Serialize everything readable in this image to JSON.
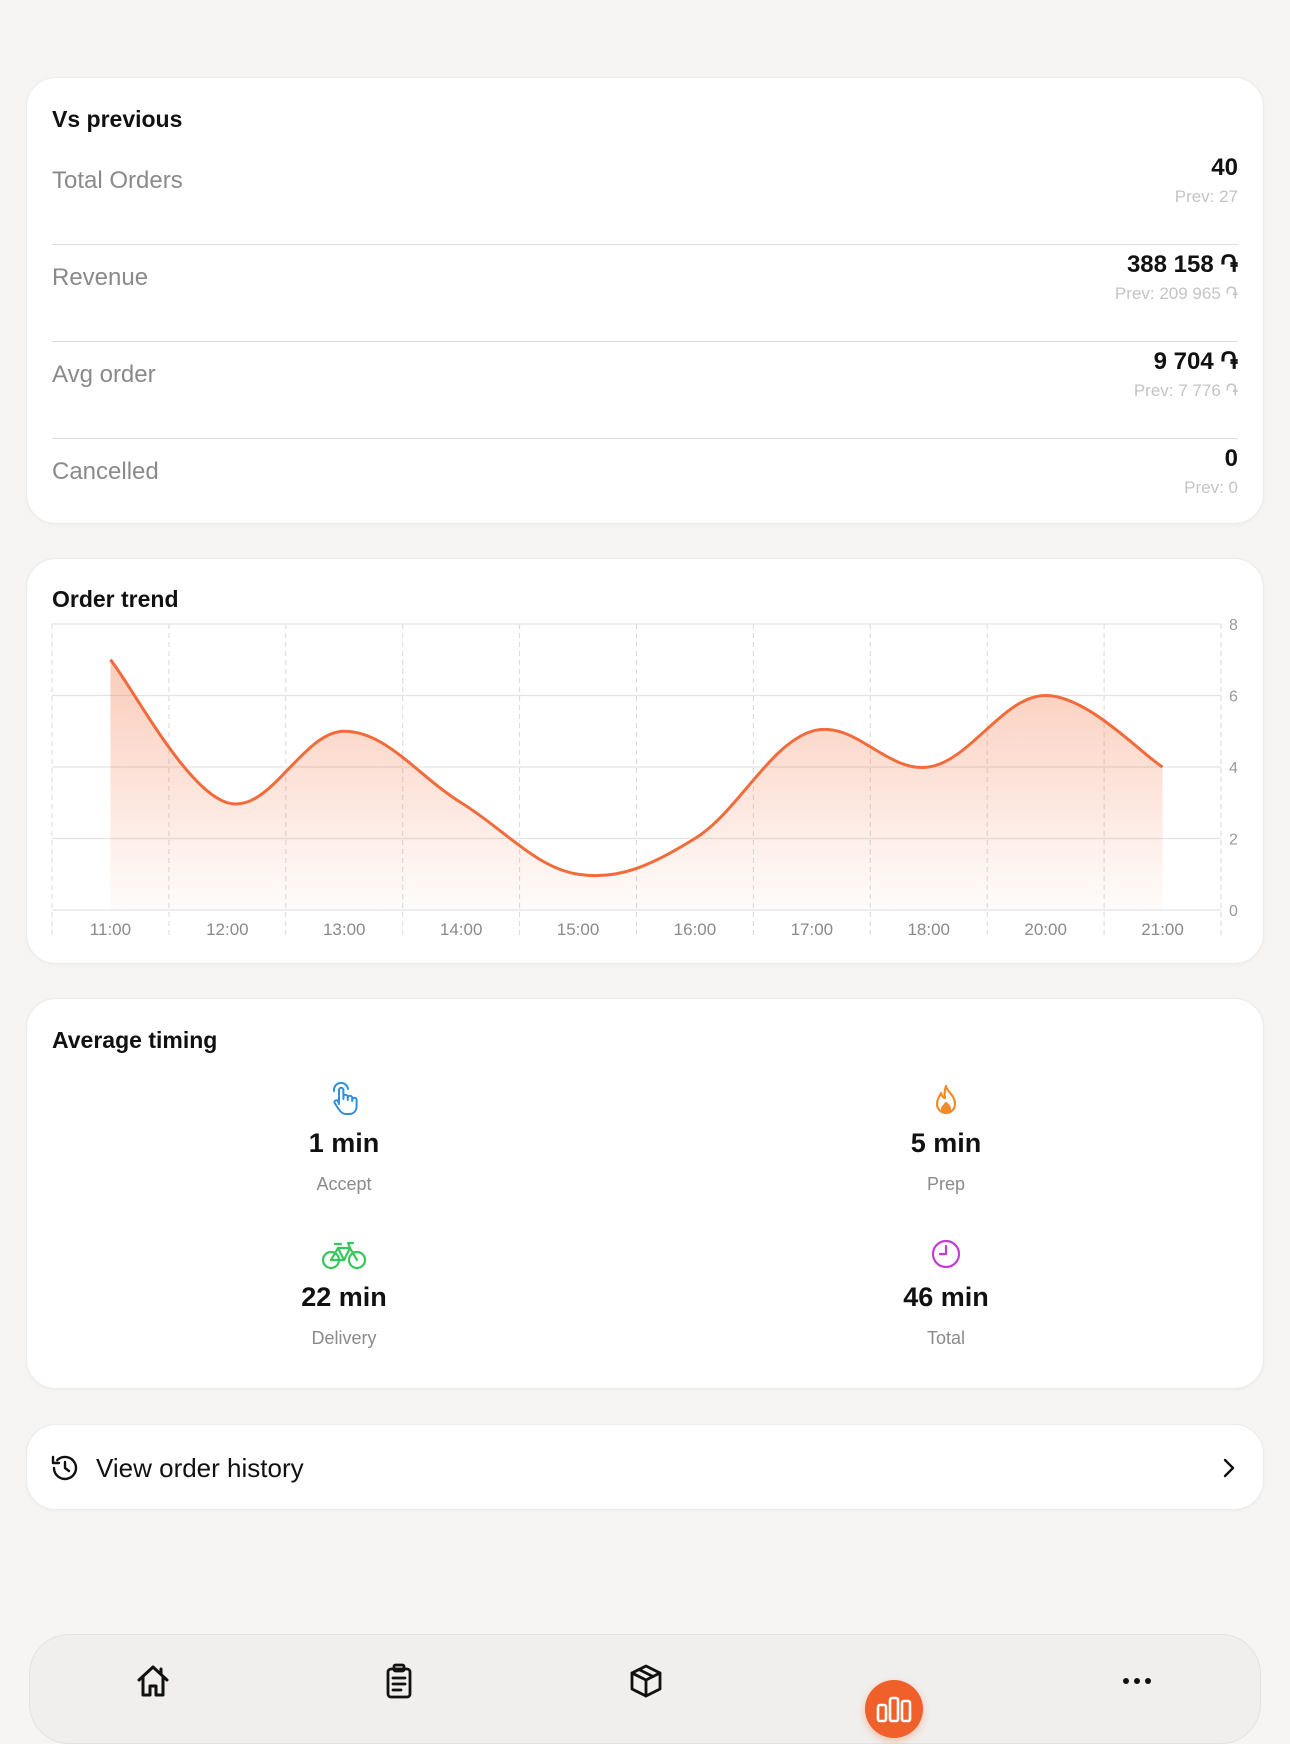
{
  "comparison": {
    "title": "Vs previous",
    "rows": [
      {
        "label": "Total Orders",
        "value": "40",
        "prev": "Prev: 27"
      },
      {
        "label": "Revenue",
        "value": "388 158 ֏",
        "prev": "Prev: 209 965 ֏"
      },
      {
        "label": "Avg order",
        "value": "9 704 ֏",
        "prev": "Prev: 7 776 ֏"
      },
      {
        "label": "Cancelled",
        "value": "0",
        "prev": "Prev: 0"
      }
    ]
  },
  "trend": {
    "title": "Order trend"
  },
  "chart_data": {
    "type": "area",
    "title": "Order trend",
    "categories": [
      "11:00",
      "12:00",
      "13:00",
      "14:00",
      "15:00",
      "16:00",
      "17:00",
      "18:00",
      "20:00",
      "21:00"
    ],
    "values": [
      7,
      3,
      5,
      3,
      1,
      2,
      5,
      4,
      6,
      4
    ],
    "y_ticks": [
      "0",
      "2",
      "4",
      "6",
      "8"
    ],
    "ylim": [
      0,
      8
    ],
    "y_axis_side": "right",
    "grid": true,
    "color": "#f26b3a"
  },
  "timing": {
    "title": "Average timing",
    "items": [
      {
        "value": "1 min",
        "label": "Accept",
        "icon": "tap-hand-icon",
        "color": "#2f8fdd"
      },
      {
        "value": "5 min",
        "label": "Prep",
        "icon": "flame-icon",
        "color": "#f08a2a"
      },
      {
        "value": "22 min",
        "label": "Delivery",
        "icon": "bicycle-icon",
        "color": "#34c759"
      },
      {
        "value": "46 min",
        "label": "Total",
        "icon": "clock-icon",
        "color": "#c43bd6"
      }
    ]
  },
  "history": {
    "label": "View order history",
    "icon": "history-icon"
  },
  "nav": {
    "items": [
      "home-icon",
      "clipboard-icon",
      "box-icon",
      "bar-chart-icon",
      "more-icon"
    ],
    "accent": "#f0602a"
  }
}
